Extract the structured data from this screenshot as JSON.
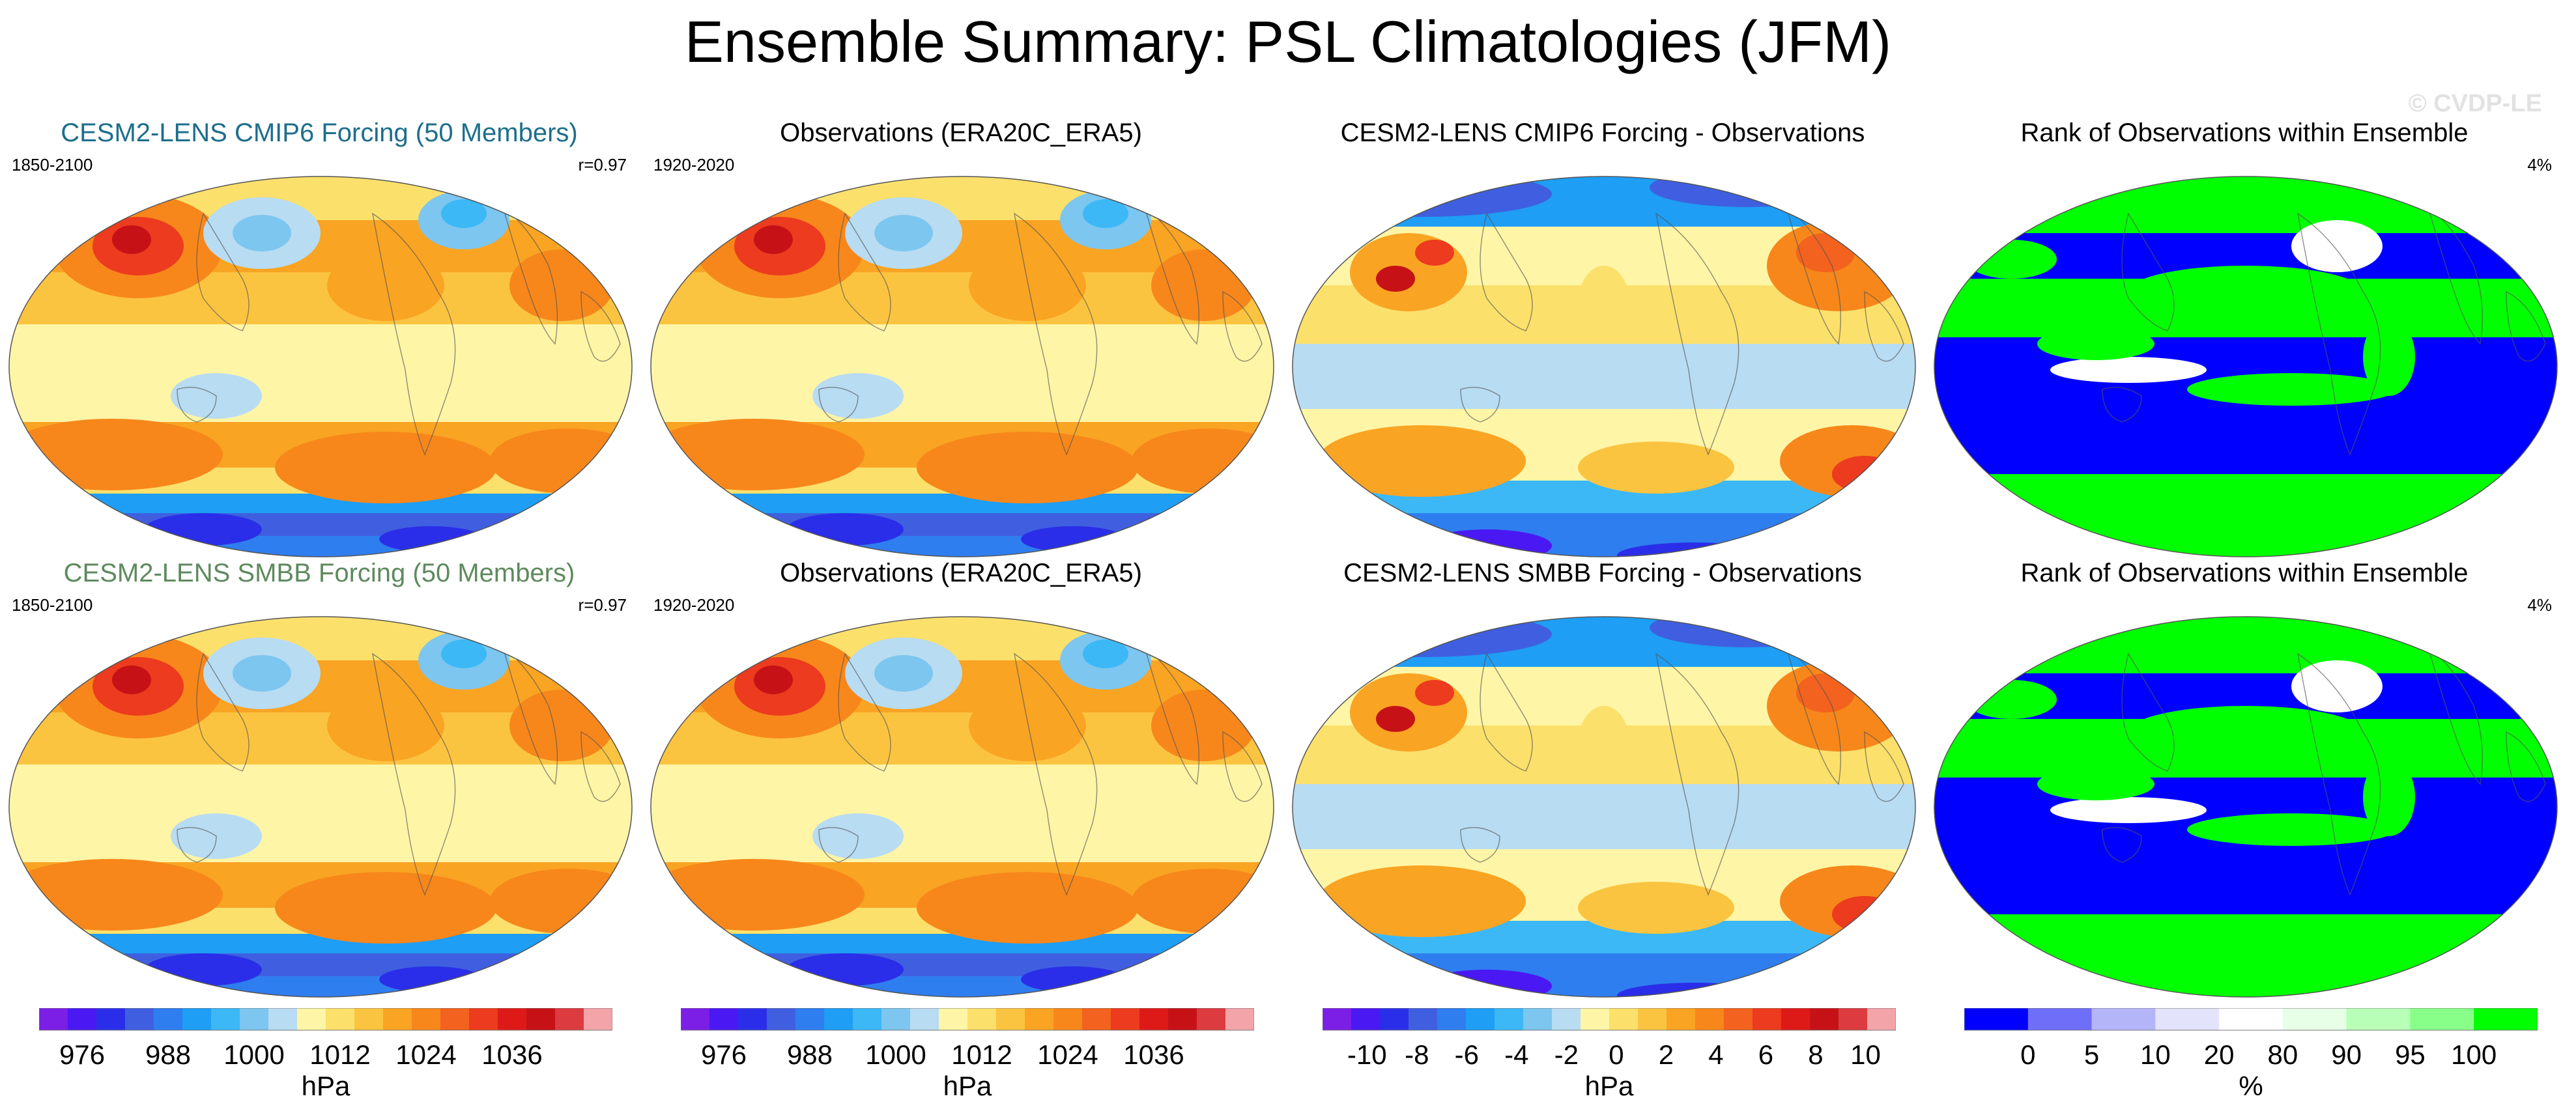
{
  "title": "Ensemble Summary: PSL Climatologies (JFM)",
  "watermark": "© CVDP-LE",
  "palettes": {
    "psl": [
      "#7b1ee6",
      "#4a18f2",
      "#2a2ee8",
      "#3f5fe0",
      "#2f7ef0",
      "#1e9ef4",
      "#3cb8f6",
      "#7cc6f0",
      "#b8dcf2",
      "#fff5a6",
      "#fbe06c",
      "#fbc440",
      "#f9a423",
      "#f7871b",
      "#f3621e",
      "#ec3b1e",
      "#de1a18",
      "#c61216",
      "#dc3b40",
      "#f3a4a8"
    ],
    "rank": [
      "#0000ff",
      "#6e6ef8",
      "#b4b4f8",
      "#e3e3fb",
      "#ffffff",
      "#e6ffe6",
      "#b8ffb8",
      "#88ff88",
      "#00ff00"
    ]
  },
  "rows": [
    {
      "panels": [
        {
          "title": "CESM2-LENS CMIP6 Forcing (50 Members)",
          "title_color": "#1d6e8c",
          "left": "1850-2100",
          "right": "r=0.97",
          "kind": "psl"
        },
        {
          "title": "Observations (ERA20C_ERA5)",
          "title_color": "#000000",
          "left": "1920-2020",
          "right": "",
          "kind": "psl"
        },
        {
          "title": "CESM2-LENS CMIP6 Forcing - Observations",
          "title_color": "#000000",
          "left": "",
          "right": "",
          "kind": "diff"
        },
        {
          "title": "Rank of Observations within Ensemble",
          "title_color": "#000000",
          "left": "",
          "right": "4%",
          "kind": "rank"
        }
      ]
    },
    {
      "panels": [
        {
          "title": "CESM2-LENS SMBB Forcing (50 Members)",
          "title_color": "#5e8a5e",
          "left": "1850-2100",
          "right": "r=0.97",
          "kind": "psl"
        },
        {
          "title": "Observations (ERA20C_ERA5)",
          "title_color": "#000000",
          "left": "1920-2020",
          "right": "",
          "kind": "psl"
        },
        {
          "title": "CESM2-LENS SMBB Forcing - Observations",
          "title_color": "#000000",
          "left": "",
          "right": "",
          "kind": "diff"
        },
        {
          "title": "Rank of Observations within Ensemble",
          "title_color": "#000000",
          "left": "",
          "right": "4%",
          "kind": "rank"
        }
      ]
    }
  ],
  "colorbars": [
    {
      "units": "hPa",
      "labels": [
        "976",
        "988",
        "1000",
        "1012",
        "1024",
        "1036"
      ],
      "kind": "psl"
    },
    {
      "units": "hPa",
      "labels": [
        "976",
        "988",
        "1000",
        "1012",
        "1024",
        "1036"
      ],
      "kind": "psl"
    },
    {
      "units": "hPa",
      "labels": [
        "-10",
        "-8",
        "-6",
        "-4",
        "-2",
        "0",
        "2",
        "4",
        "6",
        "8",
        "10"
      ],
      "kind": "psl"
    },
    {
      "units": "%",
      "labels": [
        "0",
        "5",
        "10",
        "20",
        "80",
        "90",
        "95",
        "100"
      ],
      "kind": "rank"
    }
  ]
}
